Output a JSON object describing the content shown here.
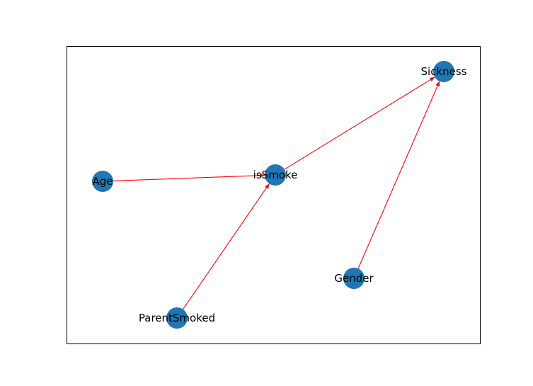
{
  "graph": {
    "node_color": "#1f77b4",
    "edge_color": "#ff0000",
    "directed": true,
    "nodes": [
      {
        "id": "Sickness",
        "label": "Sickness"
      },
      {
        "id": "isSmoke",
        "label": "isSmoke"
      },
      {
        "id": "Age",
        "label": "Age"
      },
      {
        "id": "Gender",
        "label": "Gender"
      },
      {
        "id": "ParentSmoked",
        "label": "ParentSmoked"
      }
    ],
    "edges": [
      {
        "from": "Age",
        "to": "isSmoke"
      },
      {
        "from": "ParentSmoked",
        "to": "isSmoke"
      },
      {
        "from": "isSmoke",
        "to": "Sickness"
      },
      {
        "from": "Gender",
        "to": "Sickness"
      }
    ]
  }
}
